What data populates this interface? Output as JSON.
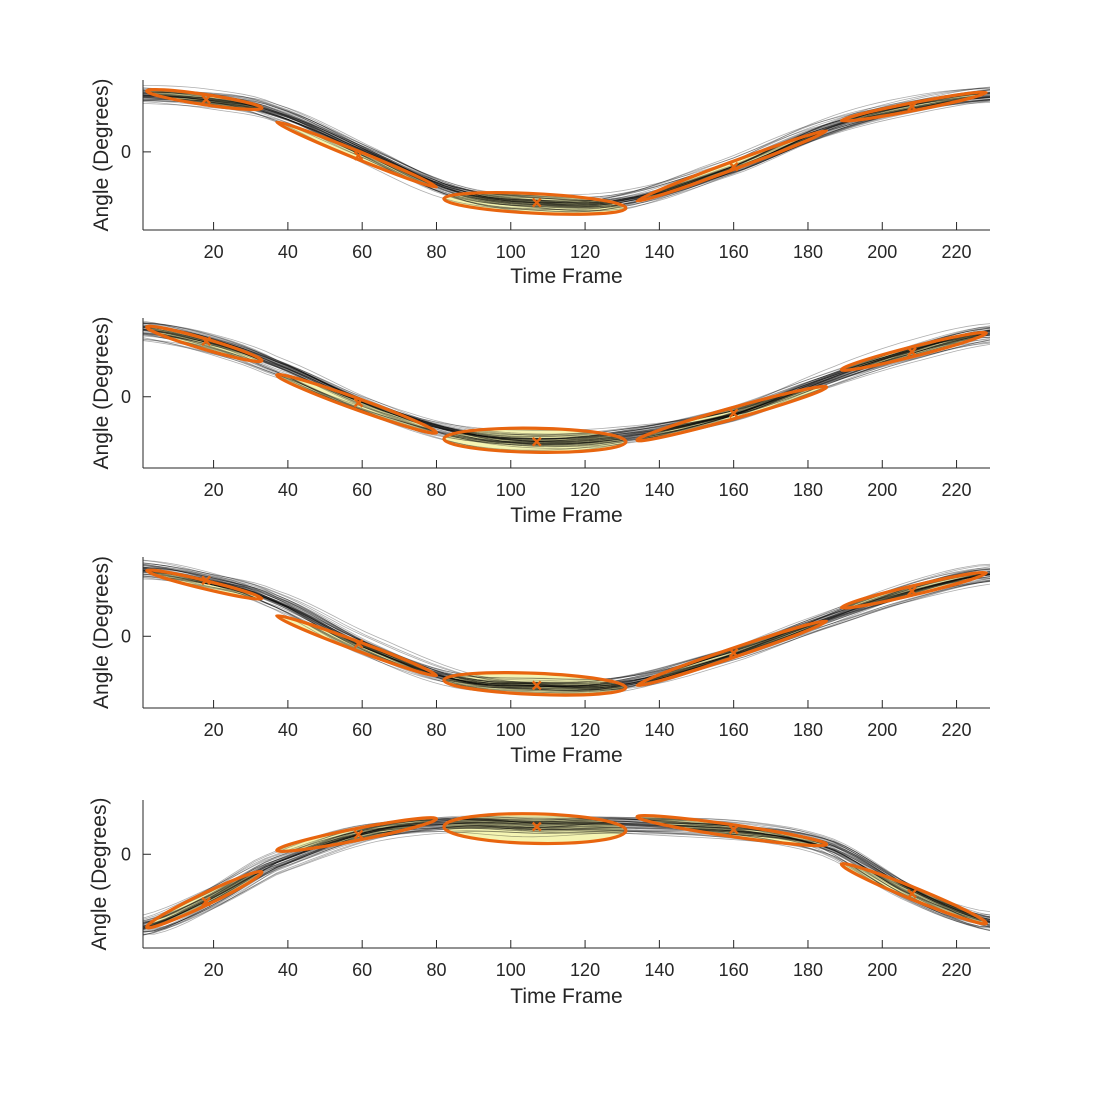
{
  "chart_data": [
    {
      "type": "line",
      "title": "",
      "xlabel": "Time Frame",
      "ylabel": "Angle (Degrees)",
      "xlim": [
        1,
        229
      ],
      "ylim": [
        -1.0,
        0.92
      ],
      "xticks": [
        20,
        40,
        60,
        80,
        100,
        120,
        140,
        160,
        180,
        200,
        220
      ],
      "yticks": [
        0
      ],
      "mean_curve": {
        "x": [
          1,
          18,
          35,
          60,
          85,
          107,
          130,
          160,
          185,
          208,
          229
        ],
        "y": [
          0.72,
          0.67,
          0.52,
          0.02,
          -0.5,
          -0.65,
          -0.62,
          -0.19,
          0.3,
          0.58,
          0.72
        ]
      },
      "centers": [
        {
          "x": 18,
          "y": 0.67
        },
        {
          "x": 59,
          "y": -0.05
        },
        {
          "x": 107,
          "y": -0.65
        },
        {
          "x": 160,
          "y": -0.19
        },
        {
          "x": 208,
          "y": 0.58
        }
      ],
      "ellipses": [
        {
          "x_from": 2,
          "x_to": 33,
          "y_start": 0.78,
          "y_end": 0.56,
          "thickness": 0.13
        },
        {
          "x_from": 37,
          "x_to": 80,
          "y_start": 0.38,
          "y_end": -0.45,
          "thickness": 0.1
        },
        {
          "x_from": 82,
          "x_to": 131,
          "y_start": -0.6,
          "y_end": -0.72,
          "thickness": 0.25
        },
        {
          "x_from": 134,
          "x_to": 185,
          "y_start": -0.63,
          "y_end": 0.27,
          "thickness": 0.1
        },
        {
          "x_from": 189,
          "x_to": 228,
          "y_start": 0.4,
          "y_end": 0.76,
          "thickness": 0.1
        }
      ]
    },
    {
      "type": "line",
      "title": "",
      "xlabel": "Time Frame",
      "ylabel": "Angle (Degrees)",
      "xlim": [
        1,
        229
      ],
      "ylim": [
        -0.95,
        1.05
      ],
      "xticks": [
        20,
        40,
        60,
        80,
        100,
        120,
        140,
        160,
        180,
        200,
        220
      ],
      "yticks": [
        0
      ],
      "mean_curve": {
        "x": [
          1,
          18,
          35,
          60,
          85,
          107,
          130,
          160,
          185,
          208,
          229
        ],
        "y": [
          0.9,
          0.74,
          0.45,
          -0.08,
          -0.48,
          -0.6,
          -0.52,
          -0.22,
          0.23,
          0.6,
          0.85
        ]
      },
      "centers": [
        {
          "x": 18,
          "y": 0.74
        },
        {
          "x": 59,
          "y": -0.08
        },
        {
          "x": 107,
          "y": -0.6
        },
        {
          "x": 160,
          "y": -0.22
        },
        {
          "x": 208,
          "y": 0.6
        }
      ],
      "ellipses": [
        {
          "x_from": 2,
          "x_to": 33,
          "y_start": 0.93,
          "y_end": 0.48,
          "thickness": 0.14
        },
        {
          "x_from": 37,
          "x_to": 80,
          "y_start": 0.29,
          "y_end": -0.48,
          "thickness": 0.15
        },
        {
          "x_from": 82,
          "x_to": 131,
          "y_start": -0.56,
          "y_end": -0.6,
          "thickness": 0.32
        },
        {
          "x_from": 134,
          "x_to": 185,
          "y_start": -0.58,
          "y_end": 0.13,
          "thickness": 0.15
        },
        {
          "x_from": 189,
          "x_to": 228,
          "y_start": 0.36,
          "y_end": 0.85,
          "thickness": 0.13
        }
      ]
    },
    {
      "type": "line",
      "title": "",
      "xlabel": "Time Frame",
      "ylabel": "Angle (Degrees)",
      "xlim": [
        1,
        229
      ],
      "ylim": [
        -0.95,
        1.05
      ],
      "xticks": [
        20,
        40,
        60,
        80,
        100,
        120,
        140,
        160,
        180,
        200,
        220
      ],
      "yticks": [
        0
      ],
      "mean_curve": {
        "x": [
          1,
          18,
          35,
          60,
          85,
          107,
          130,
          160,
          185,
          208,
          229
        ],
        "y": [
          0.88,
          0.74,
          0.5,
          -0.1,
          -0.55,
          -0.65,
          -0.62,
          -0.22,
          0.23,
          0.6,
          0.82
        ]
      },
      "centers": [
        {
          "x": 18,
          "y": 0.74
        },
        {
          "x": 59,
          "y": -0.1
        },
        {
          "x": 107,
          "y": -0.65
        },
        {
          "x": 160,
          "y": -0.22
        },
        {
          "x": 208,
          "y": 0.6
        }
      ],
      "ellipses": [
        {
          "x_from": 2,
          "x_to": 33,
          "y_start": 0.87,
          "y_end": 0.5,
          "thickness": 0.11
        },
        {
          "x_from": 37,
          "x_to": 80,
          "y_start": 0.27,
          "y_end": -0.52,
          "thickness": 0.12
        },
        {
          "x_from": 82,
          "x_to": 131,
          "y_start": -0.58,
          "y_end": -0.68,
          "thickness": 0.28
        },
        {
          "x_from": 134,
          "x_to": 185,
          "y_start": -0.65,
          "y_end": 0.2,
          "thickness": 0.12
        },
        {
          "x_from": 189,
          "x_to": 228,
          "y_start": 0.38,
          "y_end": 0.84,
          "thickness": 0.12
        }
      ]
    },
    {
      "type": "line",
      "title": "",
      "xlabel": "Time Frame",
      "ylabel": "Angle (Degrees)",
      "xlim": [
        1,
        229
      ],
      "ylim": [
        -0.95,
        0.55
      ],
      "xticks": [
        20,
        40,
        60,
        80,
        100,
        120,
        140,
        160,
        180,
        200,
        220
      ],
      "yticks": [
        0
      ],
      "mean_curve": {
        "x": [
          1,
          18,
          35,
          60,
          85,
          107,
          130,
          160,
          185,
          208,
          229
        ],
        "y": [
          -0.75,
          -0.48,
          -0.12,
          0.2,
          0.3,
          0.28,
          0.3,
          0.25,
          0.08,
          -0.4,
          -0.7
        ]
      },
      "centers": [
        {
          "x": 18,
          "y": -0.48
        },
        {
          "x": 59,
          "y": 0.2
        },
        {
          "x": 107,
          "y": 0.28
        },
        {
          "x": 160,
          "y": 0.25
        },
        {
          "x": 208,
          "y": -0.4
        }
      ],
      "ellipses": [
        {
          "x_from": 2,
          "x_to": 33,
          "y_start": -0.74,
          "y_end": -0.18,
          "thickness": 0.12
        },
        {
          "x_from": 37,
          "x_to": 80,
          "y_start": 0.04,
          "y_end": 0.36,
          "thickness": 0.12
        },
        {
          "x_from": 82,
          "x_to": 131,
          "y_start": 0.28,
          "y_end": 0.24,
          "thickness": 0.3
        },
        {
          "x_from": 134,
          "x_to": 185,
          "y_start": 0.38,
          "y_end": 0.1,
          "thickness": 0.12
        },
        {
          "x_from": 189,
          "x_to": 228,
          "y_start": -0.1,
          "y_end": -0.7,
          "thickness": 0.12
        }
      ]
    }
  ],
  "style": {
    "ellipse_fill": "#f2f299",
    "ellipse_edge": "#e8650f",
    "center_marker": "#e8650f",
    "trajectory_color": "#000000",
    "axis_color": "#262626"
  }
}
